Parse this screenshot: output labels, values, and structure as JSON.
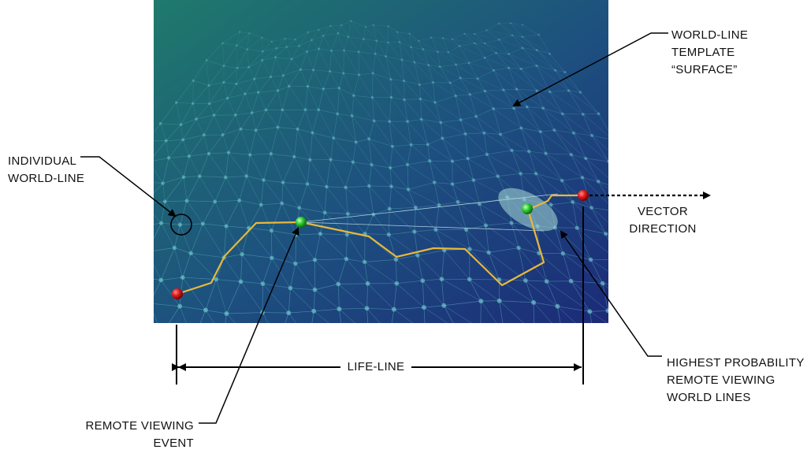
{
  "labels": {
    "world_line_template": [
      "WORLD-LINE",
      "TEMPLATE",
      "“SURFACE”"
    ],
    "individual_world_line": [
      "INDIVIDUAL",
      "WORLD-LINE"
    ],
    "vector_direction": [
      "VECTOR",
      "DIRECTION"
    ],
    "highest_probability": [
      "HIGHEST PROBABILITY",
      "REMOTE VIEWING",
      "WORLD LINES"
    ],
    "remote_viewing_event": [
      "REMOTE VIEWING",
      "EVENT"
    ],
    "life_line": "LIFE-LINE"
  },
  "colors": {
    "surface_top": "#1f7a6c",
    "surface_bottom": "#1c2f7a",
    "mesh": "#7fe3e0",
    "life_path": "#e8b83a",
    "endpoint_marker": "#e01b1b",
    "event_marker": "#2ecc2e",
    "probability_ellipse": "#a9dcd9"
  }
}
